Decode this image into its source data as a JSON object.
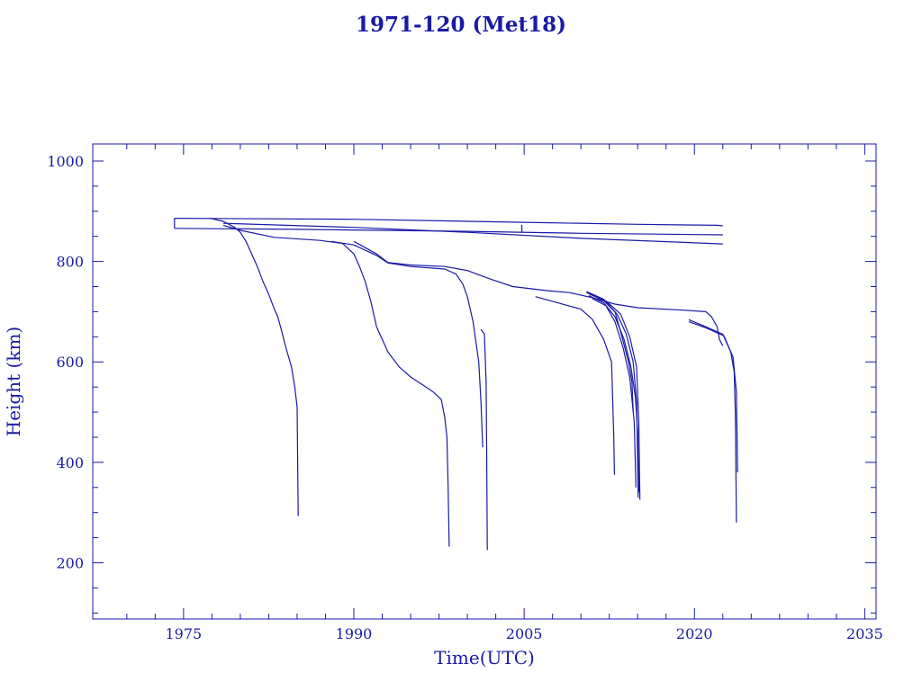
{
  "chart_data": {
    "type": "line",
    "title": "1971-120 (Met18)",
    "xlabel": "Time(UTC)",
    "ylabel": "Height (km)",
    "xlim": [
      1967,
      2036
    ],
    "ylim": [
      88,
      1034
    ],
    "x_ticks": [
      1975,
      1990,
      2005,
      2020,
      2035
    ],
    "y_ticks": [
      200,
      400,
      600,
      800,
      1000
    ],
    "color": "#1a1aa6",
    "grid": false,
    "legend": "none",
    "series": [
      {
        "points": [
          [
            1974.2,
            886
          ],
          [
            1990,
            884
          ],
          [
            2005,
            878
          ],
          [
            2015,
            874
          ],
          [
            2022,
            872
          ],
          [
            2022.5,
            871
          ]
        ]
      },
      {
        "points": [
          [
            1974.2,
            866
          ],
          [
            1985,
            864
          ],
          [
            2000,
            860
          ],
          [
            2010,
            856
          ],
          [
            2022.5,
            853
          ]
        ]
      },
      {
        "points": [
          [
            1974.2,
            866
          ],
          [
            1974.2,
            886
          ]
        ]
      },
      {
        "points": [
          [
            1978.5,
            876
          ],
          [
            1990,
            868
          ],
          [
            2000,
            858
          ],
          [
            2010,
            846
          ],
          [
            2022.5,
            835
          ]
        ]
      },
      {
        "points": [
          [
            2004.8,
            857
          ],
          [
            2004.8,
            873
          ]
        ]
      },
      {
        "points": [
          [
            1977.3,
            886
          ],
          [
            1978.5,
            880
          ],
          [
            1979.5,
            868
          ],
          [
            1980,
            858
          ],
          [
            1980.5,
            840
          ],
          [
            1981,
            815
          ],
          [
            1981.5,
            790
          ],
          [
            1982,
            760
          ],
          [
            1982.5,
            735
          ],
          [
            1983,
            705
          ],
          [
            1983.3,
            690
          ],
          [
            1983.6,
            665
          ],
          [
            1984,
            630
          ],
          [
            1984.5,
            590
          ],
          [
            1984.8,
            550
          ],
          [
            1985,
            510
          ],
          [
            1985.05,
            400
          ],
          [
            1985.1,
            293
          ]
        ]
      },
      {
        "points": [
          [
            1978.5,
            872
          ],
          [
            1980,
            862
          ],
          [
            1983,
            848
          ],
          [
            1987,
            842
          ],
          [
            1989,
            836
          ],
          [
            1990,
            815
          ],
          [
            1990.5,
            790
          ],
          [
            1991,
            760
          ],
          [
            1991.5,
            720
          ],
          [
            1992,
            670
          ],
          [
            1992.5,
            645
          ],
          [
            1993,
            620
          ],
          [
            1994,
            590
          ],
          [
            1995,
            570
          ],
          [
            1996,
            555
          ],
          [
            1997,
            540
          ],
          [
            1997.7,
            525
          ],
          [
            1998,
            490
          ],
          [
            1998.2,
            450
          ],
          [
            1998.3,
            350
          ],
          [
            1998.4,
            232
          ]
        ]
      },
      {
        "points": [
          [
            1988,
            840
          ],
          [
            1990,
            833
          ],
          [
            1992,
            812
          ],
          [
            1993,
            797
          ],
          [
            1995,
            790
          ],
          [
            1998,
            785
          ],
          [
            1999,
            775
          ],
          [
            1999.6,
            755
          ],
          [
            2000,
            730
          ],
          [
            2000.5,
            680
          ],
          [
            2001,
            600
          ],
          [
            2001.2,
            520
          ],
          [
            2001.35,
            430
          ]
        ]
      },
      {
        "points": [
          [
            1990,
            840
          ],
          [
            1992,
            815
          ],
          [
            1993,
            798
          ],
          [
            1995,
            793
          ],
          [
            1998,
            790
          ],
          [
            2000,
            782
          ],
          [
            2002,
            765
          ],
          [
            2004,
            750
          ],
          [
            2007,
            742
          ],
          [
            2009,
            738
          ],
          [
            2011,
            728
          ],
          [
            2013,
            715
          ],
          [
            2015,
            708
          ],
          [
            2019,
            703
          ],
          [
            2021,
            700
          ],
          [
            2021.5,
            690
          ],
          [
            2022,
            670
          ],
          [
            2022.2,
            645
          ],
          [
            2022.5,
            632
          ]
        ]
      },
      {
        "points": [
          [
            2001.2,
            665
          ],
          [
            2001.5,
            655
          ],
          [
            2001.65,
            560
          ],
          [
            2001.7,
            430
          ],
          [
            2001.75,
            225
          ]
        ]
      },
      {
        "points": [
          [
            2006,
            730
          ],
          [
            2010,
            705
          ],
          [
            2011,
            685
          ],
          [
            2012,
            645
          ],
          [
            2012.7,
            600
          ],
          [
            2012.9,
            450
          ],
          [
            2012.95,
            375
          ]
        ]
      },
      {
        "points": [
          [
            2010.5,
            740
          ],
          [
            2012,
            725
          ],
          [
            2013,
            700
          ],
          [
            2013.5,
            660
          ],
          [
            2014.2,
            600
          ],
          [
            2014.5,
            560
          ],
          [
            2014.6,
            500
          ]
        ]
      },
      {
        "points": [
          [
            2010.5,
            738
          ],
          [
            2012,
            722
          ],
          [
            2013.2,
            695
          ],
          [
            2014,
            655
          ],
          [
            2014.6,
            600
          ],
          [
            2014.9,
            520
          ],
          [
            2015.0,
            400
          ],
          [
            2015.05,
            330
          ]
        ]
      },
      {
        "points": [
          [
            2010.7,
            732
          ],
          [
            2012,
            718
          ],
          [
            2013,
            690
          ],
          [
            2013.8,
            645
          ],
          [
            2014.4,
            590
          ],
          [
            2014.8,
            530
          ],
          [
            2015.0,
            460
          ],
          [
            2015.1,
            340
          ]
        ]
      },
      {
        "points": [
          [
            2011,
            726
          ],
          [
            2012.2,
            712
          ],
          [
            2013,
            680
          ],
          [
            2013.7,
            630
          ],
          [
            2014.3,
            570
          ],
          [
            2014.7,
            480
          ],
          [
            2014.85,
            350
          ]
        ]
      },
      {
        "points": [
          [
            2010.8,
            735
          ],
          [
            2012.3,
            720
          ],
          [
            2013.5,
            695
          ],
          [
            2014.3,
            650
          ],
          [
            2014.9,
            590
          ],
          [
            2015.1,
            480
          ],
          [
            2015.2,
            326
          ]
        ]
      },
      {
        "points": [
          [
            2019.5,
            684
          ],
          [
            2021,
            670
          ],
          [
            2022.5,
            655
          ],
          [
            2023.2,
            620
          ],
          [
            2023.5,
            580
          ],
          [
            2023.6,
            500
          ],
          [
            2023.7,
            280
          ]
        ]
      },
      {
        "points": [
          [
            2019.5,
            680
          ],
          [
            2021,
            668
          ],
          [
            2022.6,
            652
          ],
          [
            2023.4,
            610
          ],
          [
            2023.7,
            540
          ],
          [
            2023.8,
            380
          ]
        ]
      }
    ]
  }
}
